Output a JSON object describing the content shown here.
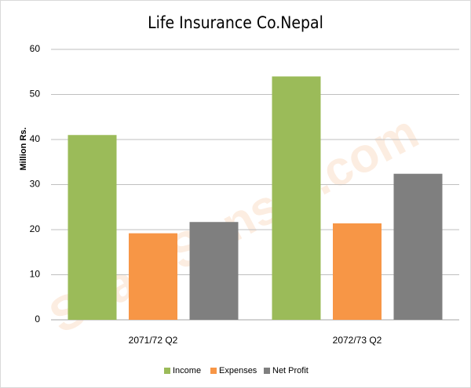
{
  "chart_data": {
    "type": "bar",
    "title": "Life Insurance Co.Nepal",
    "y_label": "Million Rs.",
    "watermark": "ShareSansar.com",
    "categories": [
      "2071/72 Q2",
      "2072/73 Q2"
    ],
    "series": [
      {
        "name": "Income",
        "color": "#9bbb59",
        "values": [
          41,
          54
        ]
      },
      {
        "name": "Expenses",
        "color": "#f79646",
        "values": [
          19.2,
          21.4
        ]
      },
      {
        "name": "Net Profit",
        "color": "#7f7f7f",
        "values": [
          21.7,
          32.4
        ]
      }
    ],
    "ylim": [
      0,
      60
    ],
    "yticks": [
      0,
      10,
      20,
      30,
      40,
      50,
      60
    ],
    "grid": true,
    "legend": "bottom"
  }
}
